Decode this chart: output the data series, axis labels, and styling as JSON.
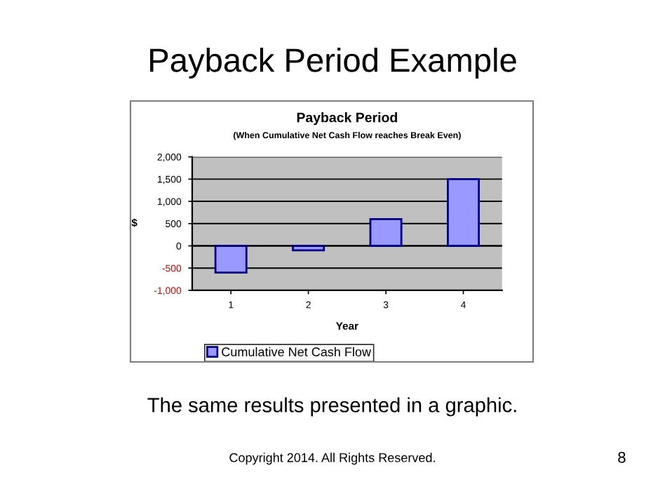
{
  "chart_data": {
    "type": "bar",
    "title": "Payback Period",
    "subtitle": "(When Cumulative Net Cash Flow reaches Break Even)",
    "xlabel": "Year",
    "ylabel": "$",
    "categories": [
      "1",
      "2",
      "3",
      "4"
    ],
    "series": [
      {
        "name": "Cumulative Net Cash Flow",
        "color": "#9999ff",
        "values": [
          -600,
          -100,
          600,
          1500
        ]
      }
    ],
    "ylim": [
      -1000,
      2000
    ],
    "yticks": [
      {
        "value": -1000,
        "label": "-1,000"
      },
      -500,
      0,
      500,
      {
        "value": 1000,
        "label": "1,000"
      },
      {
        "value": 1500,
        "label": "1,500"
      },
      {
        "value": 2000,
        "label": "2,000"
      }
    ],
    "grid": "y",
    "legend": "bottom",
    "annotations": [
      "Payback Period Example",
      "The same results presented in a graphic.",
      "Copyright 2014. All Rights Reserved.",
      "8"
    ]
  }
}
